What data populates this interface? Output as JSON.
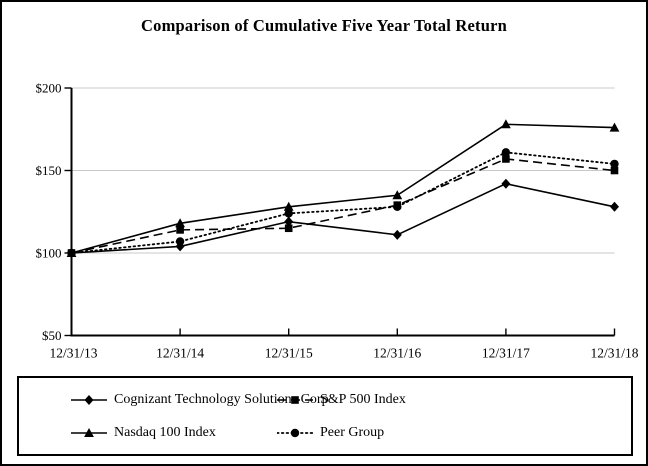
{
  "page": {
    "title": "Comparison of Cumulative Five Year Total Return"
  },
  "chart_data": {
    "type": "line",
    "title": "Comparison of Cumulative Five Year Total Return",
    "categories": [
      "12/31/13",
      "12/31/14",
      "12/31/15",
      "12/31/16",
      "12/31/17",
      "12/31/18"
    ],
    "series": [
      {
        "name": "Cognizant Technology Solutions Corp",
        "marker": "diamond",
        "line": "solid",
        "values": [
          100,
          104,
          119,
          111,
          142,
          128
        ]
      },
      {
        "name": "S&P 500 Index",
        "marker": "square",
        "line": "dashed",
        "values": [
          100,
          114,
          115,
          129,
          157,
          150
        ]
      },
      {
        "name": "Nasdaq 100 Index",
        "marker": "triangle",
        "line": "solid",
        "values": [
          100,
          118,
          128,
          135,
          178,
          176
        ]
      },
      {
        "name": "Peer Group",
        "marker": "circle",
        "line": "dotted",
        "values": [
          100,
          107,
          124,
          128,
          161,
          154
        ]
      }
    ],
    "xlabel": "",
    "ylabel": "",
    "ylim": [
      50,
      200
    ],
    "y_ticks": [
      50,
      100,
      150,
      200
    ],
    "y_tick_labels": [
      "$50",
      "$100",
      "$150",
      "$200"
    ],
    "grid": "horizontal",
    "legend_position": "bottom-boxed",
    "colors": {
      "line": "#000000",
      "grid": "#c8c8c8",
      "background": "#ffffff",
      "text": "#000000"
    }
  }
}
